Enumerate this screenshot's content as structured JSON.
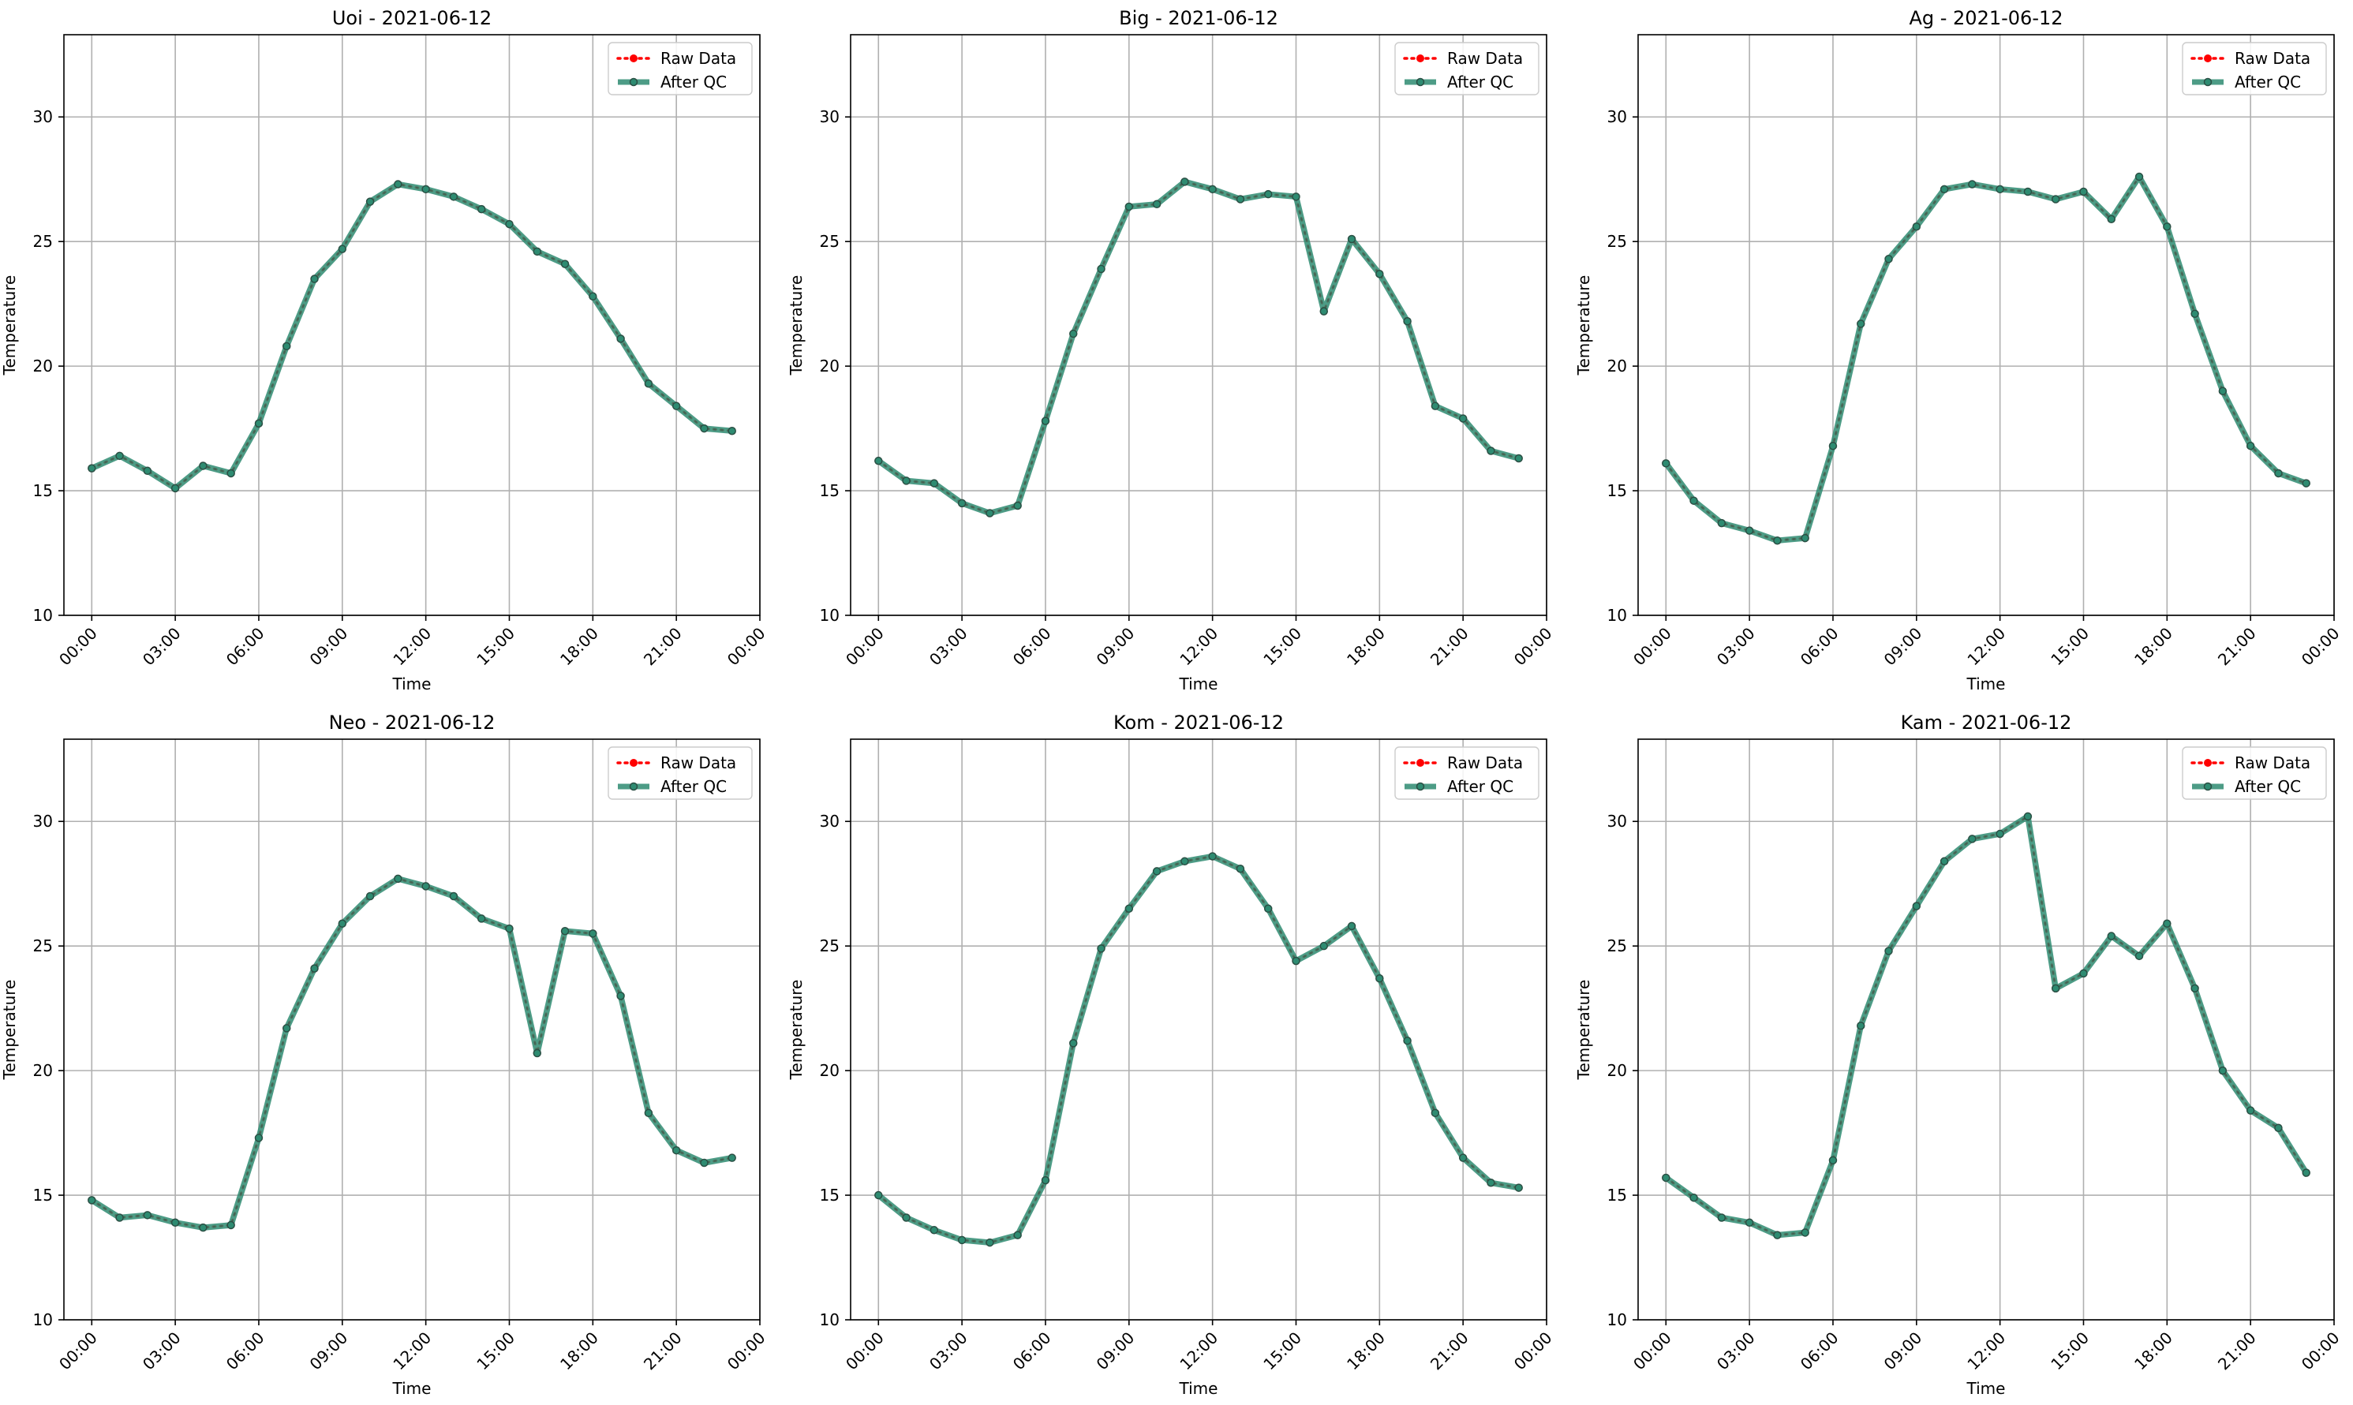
{
  "figure": {
    "legend_labels": [
      "Raw Data",
      "After QC"
    ],
    "legend_placement": "top-right",
    "colors": {
      "raw": "#ff0000",
      "qc": "#2e8b71",
      "grid": "#b0b0b0",
      "axis": "#000000"
    }
  },
  "chart_data": [
    {
      "type": "line",
      "title": "Uoi - 2021-06-12",
      "xlabel": "Time",
      "ylabel": "Temperature",
      "ylim": [
        10,
        33.3
      ],
      "yticks": [
        10,
        15,
        20,
        25,
        30
      ],
      "xticks": [
        "00:00",
        "03:00",
        "06:00",
        "09:00",
        "12:00",
        "15:00",
        "18:00",
        "21:00",
        "00:00"
      ],
      "x_hours": [
        0,
        1,
        2,
        3,
        4,
        5,
        6,
        7,
        8,
        9,
        10,
        11,
        12,
        13,
        14,
        15,
        16,
        17,
        18,
        19,
        20,
        21,
        22,
        23
      ],
      "grid": true,
      "legend": "top-right",
      "series": [
        {
          "name": "Raw Data",
          "values": [
            15.9,
            16.4,
            15.8,
            15.1,
            16.0,
            15.7,
            17.7,
            20.8,
            23.5,
            24.7,
            26.6,
            27.3,
            27.1,
            26.8,
            26.3,
            25.7,
            24.6,
            24.1,
            22.8,
            21.1,
            19.3,
            18.4,
            17.5,
            17.4
          ]
        },
        {
          "name": "After QC",
          "values": [
            15.9,
            16.4,
            15.8,
            15.1,
            16.0,
            15.7,
            17.7,
            20.8,
            23.5,
            24.7,
            26.6,
            27.3,
            27.1,
            26.8,
            26.3,
            25.7,
            24.6,
            24.1,
            22.8,
            21.1,
            19.3,
            18.4,
            17.5,
            17.4
          ]
        }
      ]
    },
    {
      "type": "line",
      "title": "Big - 2021-06-12",
      "xlabel": "Time",
      "ylabel": "Temperature",
      "ylim": [
        10,
        33.3
      ],
      "yticks": [
        10,
        15,
        20,
        25,
        30
      ],
      "xticks": [
        "00:00",
        "03:00",
        "06:00",
        "09:00",
        "12:00",
        "15:00",
        "18:00",
        "21:00",
        "00:00"
      ],
      "x_hours": [
        0,
        1,
        2,
        3,
        4,
        5,
        6,
        7,
        8,
        9,
        10,
        11,
        12,
        13,
        14,
        15,
        16,
        17,
        18,
        19,
        20,
        21,
        22,
        23
      ],
      "grid": true,
      "legend": "top-right",
      "series": [
        {
          "name": "Raw Data",
          "values": [
            16.2,
            15.4,
            15.3,
            14.5,
            14.1,
            14.4,
            17.8,
            21.3,
            23.9,
            26.4,
            26.5,
            27.4,
            27.1,
            26.7,
            26.9,
            26.8,
            22.2,
            25.1,
            23.7,
            21.8,
            18.4,
            17.9,
            16.6,
            16.3
          ]
        },
        {
          "name": "After QC",
          "values": [
            16.2,
            15.4,
            15.3,
            14.5,
            14.1,
            14.4,
            17.8,
            21.3,
            23.9,
            26.4,
            26.5,
            27.4,
            27.1,
            26.7,
            26.9,
            26.8,
            22.2,
            25.1,
            23.7,
            21.8,
            18.4,
            17.9,
            16.6,
            16.3
          ]
        }
      ]
    },
    {
      "type": "line",
      "title": "Ag - 2021-06-12",
      "xlabel": "Time",
      "ylabel": "Temperature",
      "ylim": [
        10,
        33.3
      ],
      "yticks": [
        10,
        15,
        20,
        25,
        30
      ],
      "xticks": [
        "00:00",
        "03:00",
        "06:00",
        "09:00",
        "12:00",
        "15:00",
        "18:00",
        "21:00",
        "00:00"
      ],
      "x_hours": [
        0,
        1,
        2,
        3,
        4,
        5,
        6,
        7,
        8,
        9,
        10,
        11,
        12,
        13,
        14,
        15,
        16,
        17,
        18,
        19,
        20,
        21,
        22,
        23
      ],
      "grid": true,
      "legend": "top-right",
      "series": [
        {
          "name": "Raw Data",
          "values": [
            16.1,
            14.6,
            13.7,
            13.4,
            13.0,
            13.1,
            16.8,
            21.7,
            24.3,
            25.6,
            27.1,
            27.3,
            27.1,
            27.0,
            26.7,
            27.0,
            25.9,
            27.6,
            25.6,
            22.1,
            19.0,
            16.8,
            15.7,
            15.3
          ]
        },
        {
          "name": "After QC",
          "values": [
            16.1,
            14.6,
            13.7,
            13.4,
            13.0,
            13.1,
            16.8,
            21.7,
            24.3,
            25.6,
            27.1,
            27.3,
            27.1,
            27.0,
            26.7,
            27.0,
            25.9,
            27.6,
            25.6,
            22.1,
            19.0,
            16.8,
            15.7,
            15.3
          ]
        }
      ]
    },
    {
      "type": "line",
      "title": "Neo - 2021-06-12",
      "xlabel": "Time",
      "ylabel": "Temperature",
      "ylim": [
        10,
        33.3
      ],
      "yticks": [
        10,
        15,
        20,
        25,
        30
      ],
      "xticks": [
        "00:00",
        "03:00",
        "06:00",
        "09:00",
        "12:00",
        "15:00",
        "18:00",
        "21:00",
        "00:00"
      ],
      "x_hours": [
        0,
        1,
        2,
        3,
        4,
        5,
        6,
        7,
        8,
        9,
        10,
        11,
        12,
        13,
        14,
        15,
        16,
        17,
        18,
        19,
        20,
        21,
        22,
        23
      ],
      "grid": true,
      "legend": "top-right",
      "series": [
        {
          "name": "Raw Data",
          "values": [
            14.8,
            14.1,
            14.2,
            13.9,
            13.7,
            13.8,
            17.3,
            21.7,
            24.1,
            25.9,
            27.0,
            27.7,
            27.4,
            27.0,
            26.1,
            25.7,
            20.7,
            25.6,
            25.5,
            23.0,
            18.3,
            16.8,
            16.3,
            16.5
          ]
        },
        {
          "name": "After QC",
          "values": [
            14.8,
            14.1,
            14.2,
            13.9,
            13.7,
            13.8,
            17.3,
            21.7,
            24.1,
            25.9,
            27.0,
            27.7,
            27.4,
            27.0,
            26.1,
            25.7,
            20.7,
            25.6,
            25.5,
            23.0,
            18.3,
            16.8,
            16.3,
            16.5
          ]
        }
      ]
    },
    {
      "type": "line",
      "title": "Kom - 2021-06-12",
      "xlabel": "Time",
      "ylabel": "Temperature",
      "ylim": [
        10,
        33.3
      ],
      "yticks": [
        10,
        15,
        20,
        25,
        30
      ],
      "xticks": [
        "00:00",
        "03:00",
        "06:00",
        "09:00",
        "12:00",
        "15:00",
        "18:00",
        "21:00",
        "00:00"
      ],
      "x_hours": [
        0,
        1,
        2,
        3,
        4,
        5,
        6,
        7,
        8,
        9,
        10,
        11,
        12,
        13,
        14,
        15,
        16,
        17,
        18,
        19,
        20,
        21,
        22,
        23
      ],
      "grid": true,
      "legend": "top-right",
      "series": [
        {
          "name": "Raw Data",
          "values": [
            15.0,
            14.1,
            13.6,
            13.2,
            13.1,
            13.4,
            15.6,
            21.1,
            24.9,
            26.5,
            28.0,
            28.4,
            28.6,
            28.1,
            26.5,
            24.4,
            25.0,
            25.8,
            23.7,
            21.2,
            18.3,
            16.5,
            15.5,
            15.3
          ]
        },
        {
          "name": "After QC",
          "values": [
            15.0,
            14.1,
            13.6,
            13.2,
            13.1,
            13.4,
            15.6,
            21.1,
            24.9,
            26.5,
            28.0,
            28.4,
            28.6,
            28.1,
            26.5,
            24.4,
            25.0,
            25.8,
            23.7,
            21.2,
            18.3,
            16.5,
            15.5,
            15.3
          ]
        }
      ]
    },
    {
      "type": "line",
      "title": "Kam - 2021-06-12",
      "xlabel": "Time",
      "ylabel": "Temperature",
      "ylim": [
        10,
        33.3
      ],
      "yticks": [
        10,
        15,
        20,
        25,
        30
      ],
      "xticks": [
        "00:00",
        "03:00",
        "06:00",
        "09:00",
        "12:00",
        "15:00",
        "18:00",
        "21:00",
        "00:00"
      ],
      "x_hours": [
        0,
        1,
        2,
        3,
        4,
        5,
        6,
        7,
        8,
        9,
        10,
        11,
        12,
        13,
        14,
        15,
        16,
        17,
        18,
        19,
        20,
        21,
        22,
        23
      ],
      "grid": true,
      "legend": "top-right",
      "series": [
        {
          "name": "Raw Data",
          "values": [
            15.7,
            14.9,
            14.1,
            13.9,
            13.4,
            13.5,
            16.4,
            21.8,
            24.8,
            26.6,
            28.4,
            29.3,
            29.5,
            30.2,
            23.3,
            23.9,
            25.4,
            24.6,
            25.9,
            23.3,
            20.0,
            18.4,
            17.7,
            15.9
          ]
        },
        {
          "name": "After QC",
          "values": [
            15.7,
            14.9,
            14.1,
            13.9,
            13.4,
            13.5,
            16.4,
            21.8,
            24.8,
            26.6,
            28.4,
            29.3,
            29.5,
            30.2,
            23.3,
            23.9,
            25.4,
            24.6,
            25.9,
            23.3,
            20.0,
            18.4,
            17.7,
            15.9
          ]
        }
      ]
    }
  ]
}
